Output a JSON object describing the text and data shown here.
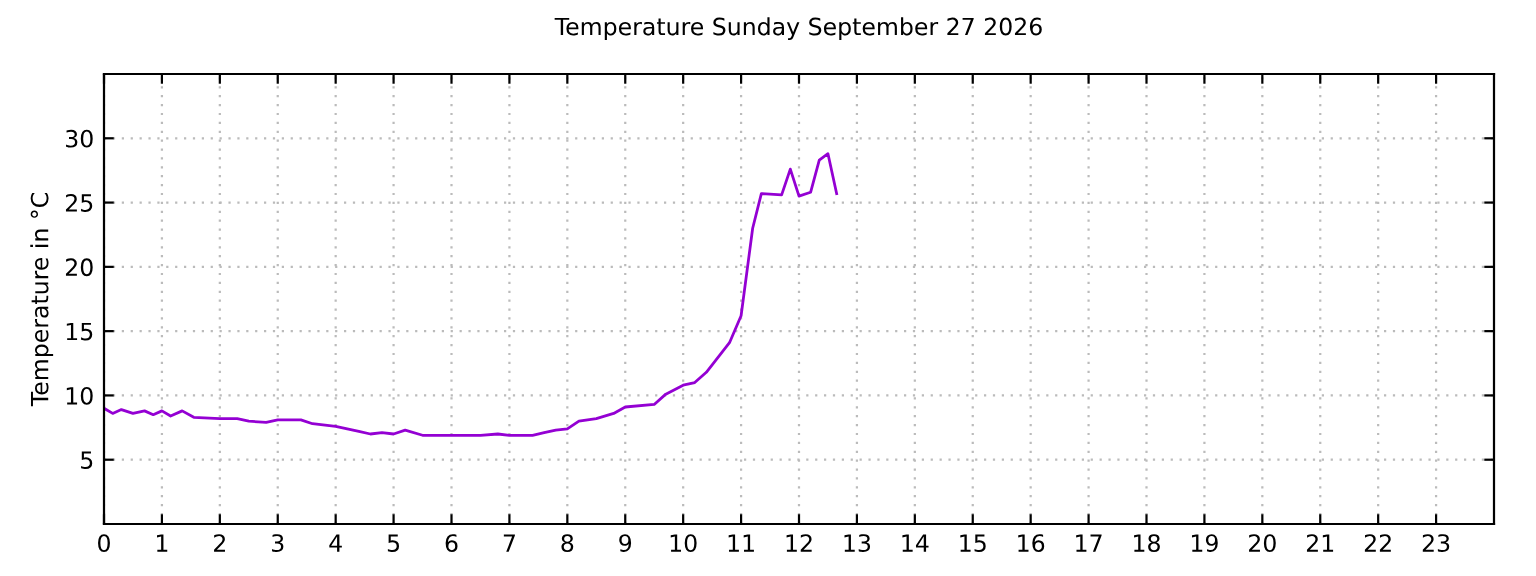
{
  "chart_data": {
    "type": "line",
    "title": "Temperature Sunday September 27 2026",
    "ylabel": "Temperature in °C",
    "x": [
      0,
      0.15,
      0.3,
      0.5,
      0.7,
      0.85,
      1.0,
      1.15,
      1.35,
      1.55,
      2.0,
      2.3,
      2.5,
      2.8,
      3.0,
      3.4,
      3.6,
      4.0,
      4.4,
      4.6,
      4.8,
      5.0,
      5.2,
      5.5,
      6.0,
      6.5,
      6.8,
      7.0,
      7.4,
      7.6,
      7.8,
      8.0,
      8.2,
      8.5,
      8.8,
      9.0,
      9.5,
      9.7,
      10.0,
      10.2,
      10.4,
      10.8,
      11.0,
      11.2,
      11.35,
      11.7,
      11.85,
      12.0,
      12.2,
      12.35,
      12.5,
      12.65
    ],
    "series": [
      {
        "color": "#9400d3",
        "values": [
          9.0,
          8.6,
          8.9,
          8.6,
          8.8,
          8.5,
          8.8,
          8.4,
          8.8,
          8.3,
          8.2,
          8.2,
          8.0,
          7.9,
          8.1,
          8.1,
          7.8,
          7.6,
          7.2,
          7.0,
          7.1,
          7.0,
          7.3,
          6.9,
          6.9,
          6.9,
          7.0,
          6.9,
          6.9,
          7.1,
          7.3,
          7.4,
          8.0,
          8.2,
          8.6,
          9.1,
          9.3,
          10.1,
          10.8,
          11.0,
          11.8,
          14.1,
          16.2,
          23.0,
          25.7,
          25.6,
          27.6,
          25.5,
          25.8,
          28.3,
          28.8,
          25.7
        ]
      }
    ],
    "xlim": [
      0,
      24
    ],
    "xticks": [
      0,
      1,
      2,
      3,
      4,
      5,
      6,
      7,
      8,
      9,
      10,
      11,
      12,
      13,
      14,
      15,
      16,
      17,
      18,
      19,
      20,
      21,
      22,
      23
    ],
    "ylim": [
      0,
      35
    ],
    "yticks": [
      5,
      10,
      15,
      20,
      25,
      30
    ],
    "grid": true,
    "line_style": "solid",
    "marker": "none"
  }
}
